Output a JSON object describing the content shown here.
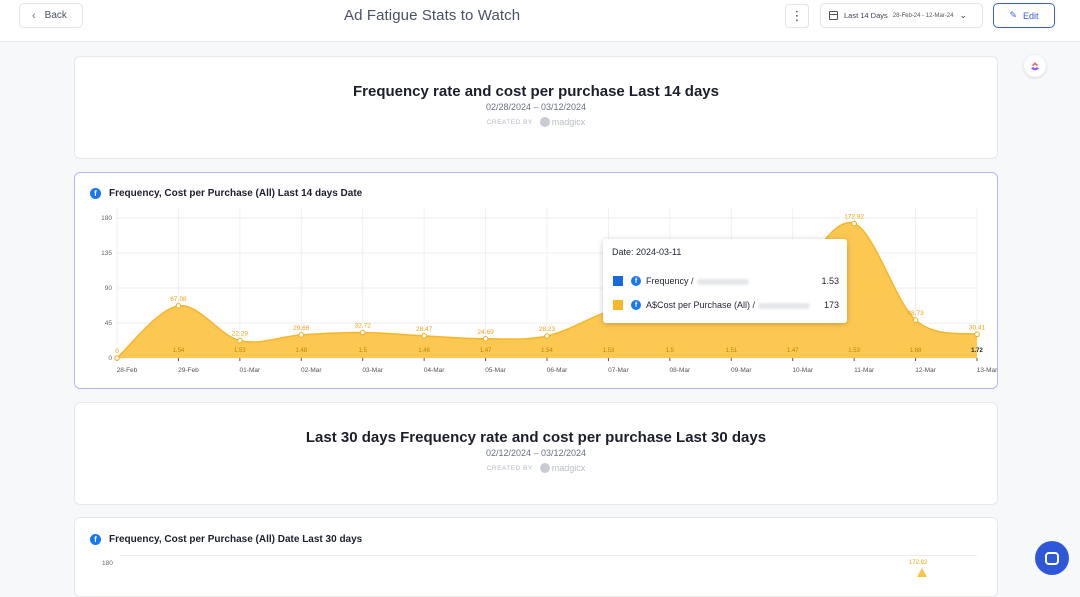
{
  "header": {
    "back_label": "Back",
    "title": "Ad Fatigue Stats to Watch",
    "more_glyph": "⋮",
    "date_range_label": "Last 14 Days",
    "date_range_dates": "28-Feb-24 - 12-Mar-24",
    "edit_label": "Edit"
  },
  "section1": {
    "title": "Frequency rate and cost per purchase Last 14 days",
    "date_range": "02/28/2024 – 03/12/2024",
    "created_by": "CREATED BY",
    "brand": "madgicx"
  },
  "chart1": {
    "title": "Frequency, Cost per Purchase (All) Last 14 days Date"
  },
  "tooltip": {
    "date": "Date: 2024-03-11",
    "rows": [
      {
        "label": "Frequency /",
        "value": "1.53",
        "color": "#1769e0"
      },
      {
        "label": "A$Cost per Purchase (All) /",
        "value": "173",
        "color": "#f9b82a"
      }
    ]
  },
  "section2": {
    "title": "Last 30 days Frequency rate and cost per purchase Last 30 days",
    "date_range": "02/12/2024 – 03/12/2024",
    "created_by": "CREATED BY",
    "brand": "madgicx"
  },
  "chart2": {
    "title": "Frequency, Cost per Purchase (All) Date Last 30 days",
    "y_top_label": "180",
    "peak_label": "172.92"
  },
  "colors": {
    "area": "#fcc548",
    "accent": "#3f5bd9",
    "facebook": "#1877f2"
  },
  "chart_data": {
    "type": "area",
    "categories": [
      "28-Feb",
      "29-Feb",
      "01-Mar",
      "02-Mar",
      "03-Mar",
      "04-Mar",
      "05-Mar",
      "06-Mar",
      "07-Mar",
      "08-Mar",
      "09-Mar",
      "10-Mar",
      "11-Mar",
      "12-Mar",
      "13-Mar"
    ],
    "series": [
      {
        "name": "A$Cost per Purchase (All)",
        "values": [
          0,
          67.08,
          22.29,
          29.66,
          32.72,
          28.47,
          24.69,
          28.23,
          60,
          82,
          96,
          110,
          172.92,
          48.73,
          30.41
        ],
        "labels": [
          "0",
          "67.08",
          "22.29",
          "29.66",
          "32.72",
          "28.47",
          "24.69",
          "28.23",
          "",
          "",
          "",
          "",
          "172.92",
          "48.73",
          "30.41"
        ]
      },
      {
        "name": "Frequency",
        "values": [
          null,
          1.54,
          1.53,
          1.48,
          1.5,
          1.46,
          1.47,
          1.54,
          1.53,
          1.5,
          1.51,
          1.47,
          1.53,
          1.68,
          1.72
        ],
        "labels": [
          "",
          "1.54",
          "1.53",
          "1.48",
          "1.5",
          "1.46",
          "1.47",
          "1.54",
          "1.53",
          "1.5",
          "1.51",
          "1.47",
          "1.53",
          "1.68",
          "1.72"
        ]
      }
    ],
    "y_ticks": [
      "0",
      "45",
      "90",
      "135",
      "180"
    ],
    "ylim": [
      0,
      180
    ],
    "grid": true,
    "legend": "none"
  }
}
